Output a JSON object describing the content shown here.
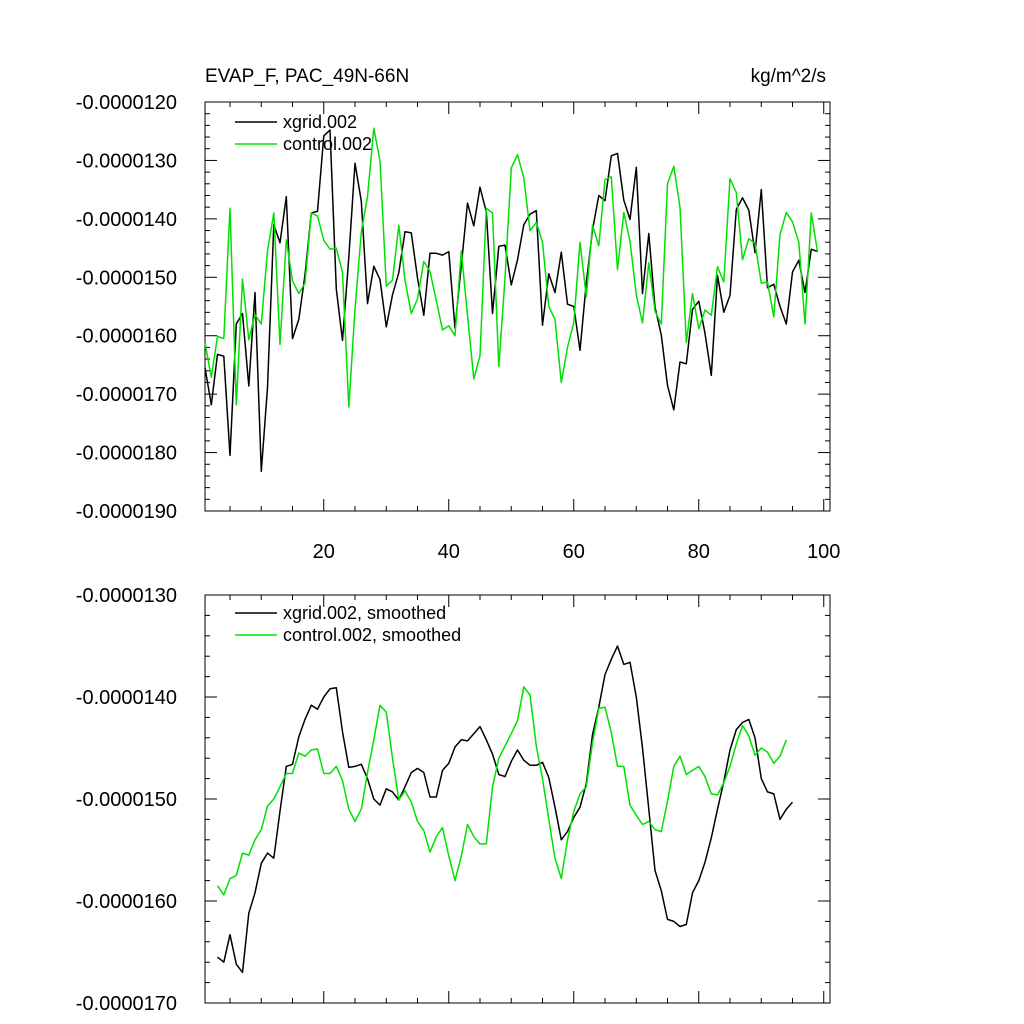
{
  "colors": {
    "series_a": "#000000",
    "series_b": "#00e000",
    "axis": "#000000",
    "background": "#ffffff"
  },
  "chart_data": [
    {
      "type": "line",
      "title": "EVAP_F, PAC_49N-66N",
      "units": "kg/m^2/s",
      "xlim": [
        1,
        101
      ],
      "ylim": [
        -1.9e-05,
        -1.2e-05
      ],
      "x_ticks": [
        20,
        40,
        60,
        80,
        100
      ],
      "y_ticks": [
        -1.2e-05,
        -1.3e-05,
        -1.4e-05,
        -1.5e-05,
        -1.6e-05,
        -1.7e-05,
        -1.8e-05,
        -1.9e-05
      ],
      "y_tick_labels": [
        "-0.0000120",
        "-0.0000130",
        "-0.0000140",
        "-0.0000150",
        "-0.0000160",
        "-0.0000170",
        "-0.0000180",
        "-0.0000190"
      ],
      "x_tick_labels": [
        "20",
        "40",
        "60",
        "80",
        "100"
      ],
      "x_start": 1,
      "series": [
        {
          "name": "xgrid.002",
          "color_key": "series_a",
          "values": [
            -1.655e-05,
            -1.718e-05,
            -1.632e-05,
            -1.635e-05,
            -1.805e-05,
            -1.58e-05,
            -1.562e-05,
            -1.686e-05,
            -1.526e-05,
            -1.832e-05,
            -1.689e-05,
            -1.41e-05,
            -1.441e-05,
            -1.362e-05,
            -1.605e-05,
            -1.572e-05,
            -1.496e-05,
            -1.39e-05,
            -1.387e-05,
            -1.258e-05,
            -1.248e-05,
            -1.52e-05,
            -1.608e-05,
            -1.466e-05,
            -1.305e-05,
            -1.37e-05,
            -1.545e-05,
            -1.481e-05,
            -1.504e-05,
            -1.585e-05,
            -1.53e-05,
            -1.492e-05,
            -1.422e-05,
            -1.424e-05,
            -1.501e-05,
            -1.565e-05,
            -1.459e-05,
            -1.459e-05,
            -1.462e-05,
            -1.456e-05,
            -1.587e-05,
            -1.48e-05,
            -1.373e-05,
            -1.412e-05,
            -1.346e-05,
            -1.388e-05,
            -1.562e-05,
            -1.447e-05,
            -1.445e-05,
            -1.513e-05,
            -1.47e-05,
            -1.41e-05,
            -1.392e-05,
            -1.386e-05,
            -1.582e-05,
            -1.494e-05,
            -1.526e-05,
            -1.457e-05,
            -1.546e-05,
            -1.55e-05,
            -1.625e-05,
            -1.51e-05,
            -1.419e-05,
            -1.36e-05,
            -1.369e-05,
            -1.292e-05,
            -1.288e-05,
            -1.368e-05,
            -1.401e-05,
            -1.312e-05,
            -1.528e-05,
            -1.425e-05,
            -1.551e-05,
            -1.599e-05,
            -1.685e-05,
            -1.727e-05,
            -1.645e-05,
            -1.648e-05,
            -1.555e-05,
            -1.541e-05,
            -1.596e-05,
            -1.668e-05,
            -1.497e-05,
            -1.56e-05,
            -1.531e-05,
            -1.384e-05,
            -1.364e-05,
            -1.385e-05,
            -1.458e-05,
            -1.35e-05,
            -1.518e-05,
            -1.512e-05,
            -1.55e-05,
            -1.58e-05,
            -1.491e-05,
            -1.471e-05,
            -1.526e-05,
            -1.452e-05,
            -1.456e-05
          ]
        },
        {
          "name": "control.002",
          "color_key": "series_b",
          "values": [
            -1.612e-05,
            -1.671e-05,
            -1.601e-05,
            -1.605e-05,
            -1.382e-05,
            -1.718e-05,
            -1.503e-05,
            -1.607e-05,
            -1.564e-05,
            -1.58e-05,
            -1.455e-05,
            -1.39e-05,
            -1.615e-05,
            -1.436e-05,
            -1.506e-05,
            -1.528e-05,
            -1.51e-05,
            -1.39e-05,
            -1.395e-05,
            -1.437e-05,
            -1.452e-05,
            -1.45e-05,
            -1.492e-05,
            -1.722e-05,
            -1.555e-05,
            -1.422e-05,
            -1.362e-05,
            -1.245e-05,
            -1.301e-05,
            -1.515e-05,
            -1.505e-05,
            -1.411e-05,
            -1.505e-05,
            -1.562e-05,
            -1.537e-05,
            -1.473e-05,
            -1.49e-05,
            -1.54e-05,
            -1.59e-05,
            -1.583e-05,
            -1.6e-05,
            -1.455e-05,
            -1.565e-05,
            -1.674e-05,
            -1.634e-05,
            -1.382e-05,
            -1.39e-05,
            -1.653e-05,
            -1.502e-05,
            -1.313e-05,
            -1.29e-05,
            -1.33e-05,
            -1.42e-05,
            -1.406e-05,
            -1.44e-05,
            -1.55e-05,
            -1.572e-05,
            -1.68e-05,
            -1.62e-05,
            -1.577e-05,
            -1.44e-05,
            -1.533e-05,
            -1.411e-05,
            -1.446e-05,
            -1.333e-05,
            -1.328e-05,
            -1.487e-05,
            -1.389e-05,
            -1.438e-05,
            -1.53e-05,
            -1.578e-05,
            -1.475e-05,
            -1.558e-05,
            -1.58e-05,
            -1.34e-05,
            -1.31e-05,
            -1.38e-05,
            -1.612e-05,
            -1.528e-05,
            -1.588e-05,
            -1.556e-05,
            -1.565e-05,
            -1.482e-05,
            -1.508e-05,
            -1.331e-05,
            -1.355e-05,
            -1.47e-05,
            -1.434e-05,
            -1.442e-05,
            -1.51e-05,
            -1.508e-05,
            -1.568e-05,
            -1.427e-05,
            -1.389e-05,
            -1.405e-05,
            -1.44e-05,
            -1.58e-05,
            -1.39e-05,
            -1.456e-05
          ]
        }
      ]
    },
    {
      "type": "line",
      "title": "",
      "units": "",
      "xlim": [
        1,
        101
      ],
      "ylim": [
        -1.7e-05,
        -1.3e-05
      ],
      "x_ticks": [
        20,
        40,
        60,
        80,
        100
      ],
      "y_ticks": [
        -1.3e-05,
        -1.4e-05,
        -1.5e-05,
        -1.6e-05,
        -1.7e-05
      ],
      "y_tick_labels": [
        "-0.0000130",
        "-0.0000140",
        "-0.0000150",
        "-0.0000160",
        "-0.0000170"
      ],
      "x_tick_labels": [],
      "x_start": 3,
      "series": [
        {
          "name": "xgrid.002, smoothed",
          "color_key": "series_a",
          "values": [
            -1.655e-05,
            -1.66e-05,
            -1.633e-05,
            -1.662e-05,
            -1.67e-05,
            -1.612e-05,
            -1.592e-05,
            -1.563e-05,
            -1.553e-05,
            -1.558e-05,
            -1.512e-05,
            -1.468e-05,
            -1.466e-05,
            -1.439e-05,
            -1.422e-05,
            -1.408e-05,
            -1.412e-05,
            -1.4e-05,
            -1.392e-05,
            -1.391e-05,
            -1.434e-05,
            -1.469e-05,
            -1.468e-05,
            -1.466e-05,
            -1.48e-05,
            -1.5e-05,
            -1.506e-05,
            -1.49e-05,
            -1.493e-05,
            -1.501e-05,
            -1.488e-05,
            -1.474e-05,
            -1.47e-05,
            -1.474e-05,
            -1.498e-05,
            -1.498e-05,
            -1.472e-05,
            -1.465e-05,
            -1.449e-05,
            -1.442e-05,
            -1.443e-05,
            -1.436e-05,
            -1.429e-05,
            -1.442e-05,
            -1.456e-05,
            -1.476e-05,
            -1.478e-05,
            -1.463e-05,
            -1.452e-05,
            -1.462e-05,
            -1.467e-05,
            -1.467e-05,
            -1.464e-05,
            -1.479e-05,
            -1.508e-05,
            -1.54e-05,
            -1.532e-05,
            -1.518e-05,
            -1.508e-05,
            -1.485e-05,
            -1.437e-05,
            -1.41e-05,
            -1.378e-05,
            -1.363e-05,
            -1.35e-05,
            -1.368e-05,
            -1.366e-05,
            -1.4e-05,
            -1.45e-05,
            -1.51e-05,
            -1.57e-05,
            -1.59e-05,
            -1.618e-05,
            -1.62e-05,
            -1.625e-05,
            -1.623e-05,
            -1.592e-05,
            -1.58e-05,
            -1.562e-05,
            -1.538e-05,
            -1.51e-05,
            -1.483e-05,
            -1.452e-05,
            -1.432e-05,
            -1.425e-05,
            -1.422e-05,
            -1.44e-05,
            -1.48e-05,
            -1.493e-05,
            -1.495e-05,
            -1.52e-05,
            -1.51e-05,
            -1.503e-05
          ]
        },
        {
          "name": "control.002, smoothed",
          "color_key": "series_b",
          "values": [
            -1.585e-05,
            -1.594e-05,
            -1.578e-05,
            -1.575e-05,
            -1.553e-05,
            -1.555e-05,
            -1.54e-05,
            -1.53e-05,
            -1.507e-05,
            -1.5e-05,
            -1.488e-05,
            -1.475e-05,
            -1.475e-05,
            -1.455e-05,
            -1.458e-05,
            -1.452e-05,
            -1.451e-05,
            -1.475e-05,
            -1.475e-05,
            -1.468e-05,
            -1.482e-05,
            -1.51e-05,
            -1.522e-05,
            -1.51e-05,
            -1.474e-05,
            -1.442e-05,
            -1.408e-05,
            -1.415e-05,
            -1.46e-05,
            -1.501e-05,
            -1.492e-05,
            -1.503e-05,
            -1.522e-05,
            -1.531e-05,
            -1.552e-05,
            -1.537e-05,
            -1.528e-05,
            -1.556e-05,
            -1.58e-05,
            -1.556e-05,
            -1.525e-05,
            -1.537e-05,
            -1.544e-05,
            -1.544e-05,
            -1.488e-05,
            -1.46e-05,
            -1.448e-05,
            -1.436e-05,
            -1.423e-05,
            -1.39e-05,
            -1.398e-05,
            -1.448e-05,
            -1.48e-05,
            -1.52e-05,
            -1.558e-05,
            -1.578e-05,
            -1.54e-05,
            -1.512e-05,
            -1.495e-05,
            -1.488e-05,
            -1.445e-05,
            -1.411e-05,
            -1.41e-05,
            -1.435e-05,
            -1.468e-05,
            -1.468e-05,
            -1.506e-05,
            -1.516e-05,
            -1.525e-05,
            -1.522e-05,
            -1.53e-05,
            -1.532e-05,
            -1.502e-05,
            -1.468e-05,
            -1.458e-05,
            -1.476e-05,
            -1.472e-05,
            -1.468e-05,
            -1.478e-05,
            -1.495e-05,
            -1.496e-05,
            -1.484e-05,
            -1.468e-05,
            -1.446e-05,
            -1.428e-05,
            -1.438e-05,
            -1.457e-05,
            -1.45e-05,
            -1.454e-05,
            -1.465e-05,
            -1.458e-05,
            -1.442e-05
          ]
        }
      ]
    }
  ]
}
